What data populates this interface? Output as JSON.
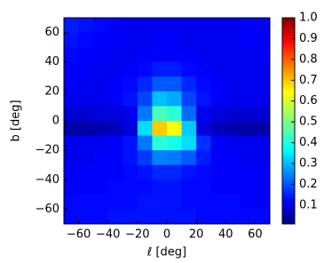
{
  "chart_data": {
    "type": "heatmap",
    "colormap": "jet",
    "xlabel": "ℓ [deg]",
    "ylabel": "b [deg]",
    "xlim": [
      -70,
      70
    ],
    "ylim": [
      -70,
      70
    ],
    "xticks": [
      {
        "value": -60,
        "label": "−60"
      },
      {
        "value": -40,
        "label": "−40"
      },
      {
        "value": -20,
        "label": "−20"
      },
      0,
      20,
      40,
      60
    ],
    "yticks": [
      {
        "value": -60,
        "label": "−60"
      },
      {
        "value": -40,
        "label": "−40"
      },
      {
        "value": -20,
        "label": "−20"
      },
      0,
      20,
      40,
      60
    ],
    "x": [
      -65,
      -55,
      -45,
      -35,
      -25,
      -15,
      -5,
      5,
      15,
      25,
      35,
      45,
      55,
      65
    ],
    "y": [
      65,
      55,
      45,
      35,
      25,
      15,
      5,
      -5,
      -15,
      -25,
      -35,
      -45,
      -55,
      -65
    ],
    "z": [
      [
        0.16,
        0.15,
        0.14,
        0.13,
        0.12,
        0.12,
        0.12,
        0.12,
        0.12,
        0.12,
        0.12,
        0.12,
        0.13,
        0.13
      ],
      [
        0.15,
        0.14,
        0.13,
        0.13,
        0.12,
        0.12,
        0.13,
        0.13,
        0.12,
        0.12,
        0.12,
        0.12,
        0.13,
        0.13
      ],
      [
        0.14,
        0.13,
        0.13,
        0.12,
        0.12,
        0.13,
        0.13,
        0.13,
        0.13,
        0.12,
        0.12,
        0.12,
        0.12,
        0.13
      ],
      [
        0.13,
        0.13,
        0.12,
        0.12,
        0.13,
        0.14,
        0.16,
        0.16,
        0.14,
        0.13,
        0.12,
        0.12,
        0.12,
        0.12
      ],
      [
        0.13,
        0.12,
        0.12,
        0.13,
        0.14,
        0.17,
        0.22,
        0.22,
        0.17,
        0.14,
        0.13,
        0.12,
        0.12,
        0.12
      ],
      [
        0.12,
        0.12,
        0.12,
        0.13,
        0.15,
        0.2,
        0.32,
        0.3,
        0.2,
        0.15,
        0.13,
        0.12,
        0.12,
        0.12
      ],
      [
        0.09,
        0.09,
        0.1,
        0.1,
        0.12,
        0.25,
        0.45,
        0.42,
        0.24,
        0.12,
        0.1,
        0.09,
        0.09,
        0.09
      ],
      [
        0.05,
        0.05,
        0.06,
        0.07,
        0.1,
        0.35,
        0.68,
        0.62,
        0.33,
        0.1,
        0.07,
        0.06,
        0.05,
        0.05
      ],
      [
        0.12,
        0.12,
        0.12,
        0.13,
        0.15,
        0.25,
        0.42,
        0.4,
        0.35,
        0.18,
        0.13,
        0.12,
        0.12,
        0.12
      ],
      [
        0.12,
        0.12,
        0.13,
        0.13,
        0.15,
        0.19,
        0.26,
        0.25,
        0.22,
        0.16,
        0.13,
        0.13,
        0.12,
        0.12
      ],
      [
        0.13,
        0.13,
        0.13,
        0.13,
        0.14,
        0.15,
        0.17,
        0.17,
        0.15,
        0.14,
        0.13,
        0.13,
        0.13,
        0.13
      ],
      [
        0.13,
        0.13,
        0.13,
        0.14,
        0.14,
        0.14,
        0.15,
        0.15,
        0.14,
        0.14,
        0.13,
        0.13,
        0.13,
        0.13
      ],
      [
        0.14,
        0.14,
        0.14,
        0.14,
        0.14,
        0.15,
        0.15,
        0.15,
        0.14,
        0.14,
        0.14,
        0.14,
        0.13,
        0.13
      ],
      [
        0.14,
        0.14,
        0.14,
        0.15,
        0.15,
        0.15,
        0.15,
        0.15,
        0.15,
        0.14,
        0.14,
        0.14,
        0.14,
        0.14
      ]
    ],
    "clim": [
      0.01,
      1
    ],
    "cticks": [
      0.1,
      0.2,
      0.3,
      0.4,
      0.5,
      0.6,
      0.7,
      0.8,
      0.9,
      {
        "value": 1,
        "label": "1.0"
      }
    ]
  }
}
